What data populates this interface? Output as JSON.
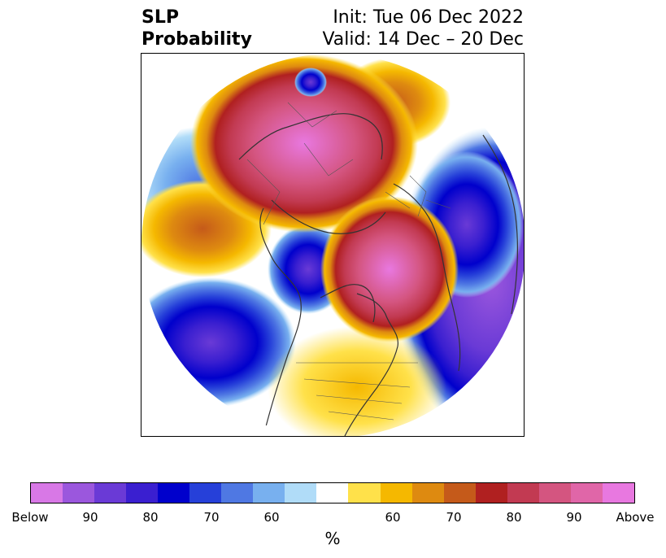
{
  "title": {
    "left_line1": "SLP",
    "left_line2": "Probability",
    "init": "Init: Tue 06 Dec 2022",
    "valid": "Valid: 14 Dec – 20 Dec"
  },
  "map": {
    "projection": "north-polar-stereographic",
    "features": [
      {
        "name": "eurasia-high",
        "category": "above",
        "peak_percent": 100
      },
      {
        "name": "north-atlantic-high",
        "category": "above",
        "peak_percent": 100
      },
      {
        "name": "north-pacific-high",
        "category": "above",
        "peak_percent": 80
      },
      {
        "name": "north-america-high",
        "category": "above",
        "peak_percent": 60
      },
      {
        "name": "central-pacific-low",
        "category": "below",
        "peak_percent": 100
      },
      {
        "name": "north-america-west-low",
        "category": "below",
        "peak_percent": 90
      },
      {
        "name": "north-russia-low",
        "category": "below",
        "peak_percent": 100
      },
      {
        "name": "kara-sea-low",
        "category": "below",
        "peak_percent": 70
      }
    ]
  },
  "colorbar": {
    "colors": [
      "#d878e6",
      "#9b57dd",
      "#6a3ad6",
      "#3a1fd0",
      "#0000cc",
      "#2640d9",
      "#4f78e3",
      "#78b0ef",
      "#b0dcf8",
      "#ffffff",
      "#ffe14a",
      "#f5b800",
      "#de8a10",
      "#c55a1a",
      "#b02020",
      "#c23a52",
      "#d45580",
      "#e066a8",
      "#e878e0"
    ],
    "ticks": [
      "Below",
      "90",
      "80",
      "70",
      "60",
      "60",
      "70",
      "80",
      "90",
      "Above"
    ],
    "unit": "%"
  }
}
